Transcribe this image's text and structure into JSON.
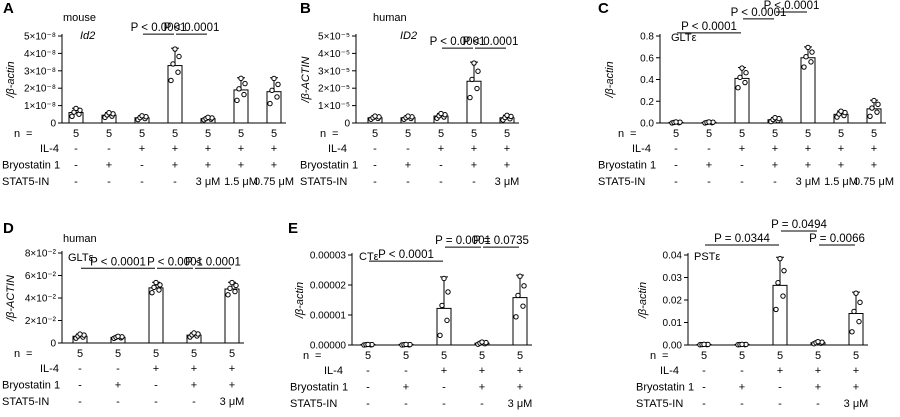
{
  "chart_data": [
    {
      "type": "bar",
      "letter": "A",
      "species": "mouse",
      "gene": "Id2",
      "gene_italic": true,
      "ylabel": "/β-actin",
      "ylim": [
        0,
        5e-08
      ],
      "yticks": [
        "0",
        "1×10⁻⁸",
        "2×10⁻⁸",
        "3×10⁻⁸",
        "4×10⁻⁸",
        "5×10⁻⁸"
      ],
      "values": [
        6e-09,
        4.5e-09,
        3e-09,
        3.3e-08,
        2.5e-09,
        1.9e-08,
        1.8e-08
      ],
      "errors": [
        2.5e-09,
        1.5e-09,
        1.2e-09,
        1e-08,
        8e-10,
        7e-09,
        8e-09
      ],
      "n": [
        "5",
        "5",
        "5",
        "5",
        "5",
        "5",
        "5"
      ],
      "rows": [
        {
          "label": "IL-4",
          "cells": [
            "-",
            "-",
            "+",
            "+",
            "+",
            "+",
            "+"
          ]
        },
        {
          "label": "Bryostatin 1",
          "cells": [
            "-",
            "+",
            "-",
            "+",
            "+",
            "+",
            "+"
          ]
        },
        {
          "label": "STAT5-IN",
          "cells": [
            "-",
            "-",
            "-",
            "-",
            "3 μM",
            "1.5 μM",
            "0.75 μM"
          ]
        }
      ],
      "brackets": [
        {
          "from": 2,
          "to": 3,
          "label": "P < 0.0001",
          "level": 0
        },
        {
          "from": 3,
          "to": 4,
          "label": "P < 0.0001",
          "level": 0
        }
      ]
    },
    {
      "type": "bar",
      "letter": "B",
      "species": "human",
      "gene": "ID2",
      "gene_italic": true,
      "ylabel": "/β-ACTIN",
      "ylim": [
        0,
        5e-05
      ],
      "yticks": [
        "0",
        "1×10⁻⁵",
        "2×10⁻⁵",
        "3×10⁻⁵",
        "4×10⁻⁵",
        "5×10⁻⁵"
      ],
      "values": [
        3e-06,
        3e-06,
        4e-06,
        2.4e-05,
        3e-06
      ],
      "errors": [
        1e-06,
        1e-06,
        1.5e-06,
        1.1e-05,
        1.5e-06
      ],
      "n": [
        "5",
        "5",
        "5",
        "5",
        "5"
      ],
      "rows": [
        {
          "label": "IL-4",
          "cells": [
            "-",
            "-",
            "+",
            "+",
            "+"
          ]
        },
        {
          "label": "Bryostatin 1",
          "cells": [
            "-",
            "+",
            "-",
            "+",
            "+"
          ]
        },
        {
          "label": "STAT5-IN",
          "cells": [
            "-",
            "-",
            "-",
            "-",
            "3 μM"
          ]
        }
      ],
      "brackets": [
        {
          "from": 2,
          "to": 3,
          "label": "P < 0.0001",
          "level": 0
        },
        {
          "from": 3,
          "to": 4,
          "label": "P < 0.0001",
          "level": 0
        }
      ]
    },
    {
      "type": "bar",
      "letter": "C",
      "species": "",
      "gene": "GLTε",
      "gene_italic": false,
      "ylabel": "/β-actin",
      "ylim": [
        0,
        0.8
      ],
      "yticks": [
        "0.0",
        "0.2",
        "0.4",
        "0.6",
        "0.8"
      ],
      "values": [
        0.005,
        0.005,
        0.41,
        0.03,
        0.6,
        0.08,
        0.13
      ],
      "errors": [
        0.005,
        0.005,
        0.1,
        0.02,
        0.1,
        0.03,
        0.08
      ],
      "n": [
        "5",
        "5",
        "5",
        "5",
        "5",
        "5",
        "5"
      ],
      "rows": [
        {
          "label": "IL-4",
          "cells": [
            "-",
            "-",
            "+",
            "+",
            "+",
            "+",
            "+"
          ]
        },
        {
          "label": "Bryostatin 1",
          "cells": [
            "-",
            "+",
            "-",
            "+",
            "+",
            "+",
            "+"
          ]
        },
        {
          "label": "STAT5-IN",
          "cells": [
            "-",
            "-",
            "-",
            "-",
            "3 μM",
            "1.5 μM",
            "0.75 μM"
          ]
        }
      ],
      "brackets": [
        {
          "from": 0,
          "to": 2,
          "label": "P < 0.0001",
          "level": 0
        },
        {
          "from": 2,
          "to": 3,
          "label": "P < 0.0001",
          "level": 1
        },
        {
          "from": 3,
          "to": 4,
          "label": "P < 0.0001",
          "level": 2
        }
      ]
    },
    {
      "type": "bar",
      "letter": "D",
      "species": "human",
      "gene": "GLTε",
      "gene_italic": false,
      "ylabel": "/β-ACTIN",
      "ylim": [
        0,
        0.08
      ],
      "yticks": [
        "0",
        "2×10⁻²",
        "4×10⁻²",
        "6×10⁻²",
        "8×10⁻²"
      ],
      "values": [
        0.006,
        0.005,
        0.049,
        0.007,
        0.048
      ],
      "errors": [
        0.002,
        0.001,
        0.005,
        0.002,
        0.006
      ],
      "n": [
        "5",
        "5",
        "5",
        "5",
        "5"
      ],
      "rows": [
        {
          "label": "IL-4",
          "cells": [
            "-",
            "-",
            "+",
            "+",
            "+"
          ]
        },
        {
          "label": "Bryostatin 1",
          "cells": [
            "-",
            "+",
            "-",
            "+",
            "+"
          ]
        },
        {
          "label": "STAT5-IN",
          "cells": [
            "-",
            "-",
            "-",
            "-",
            "3 μM"
          ]
        }
      ],
      "brackets": [
        {
          "from": 0,
          "to": 2,
          "label": "P < 0.0001",
          "level": 0
        },
        {
          "from": 2,
          "to": 3,
          "label": "P < 0.0001",
          "level": 0
        },
        {
          "from": 3,
          "to": 4,
          "label": "P < 0.0001",
          "level": 0
        }
      ]
    },
    {
      "type": "bar",
      "letter": "E",
      "species": "",
      "gene": "CTε",
      "gene_italic": false,
      "ylabel": "/β-actin",
      "ylim": [
        0,
        3e-05
      ],
      "yticks": [
        "0.00000",
        "0.00001",
        "0.00002",
        "0.00003"
      ],
      "values": [
        1e-07,
        1e-07,
        1.22e-05,
        6e-07,
        1.58e-05
      ],
      "errors": [
        1e-07,
        1e-07,
        1.05e-05,
        4e-07,
        7.5e-06
      ],
      "n": [
        "5",
        "5",
        "5",
        "5",
        "5"
      ],
      "rows": [
        {
          "label": "IL-4",
          "cells": [
            "-",
            "-",
            "+",
            "+",
            "+"
          ]
        },
        {
          "label": "Bryostatin 1",
          "cells": [
            "-",
            "+",
            "-",
            "+",
            "+"
          ]
        },
        {
          "label": "STAT5-IN",
          "cells": [
            "-",
            "-",
            "-",
            "-",
            "3 μM"
          ]
        }
      ],
      "brackets": [
        {
          "from": 0,
          "to": 2,
          "label": "P < 0.0001",
          "level": 0
        },
        {
          "from": 2,
          "to": 3,
          "label": "P = 0.0001",
          "level": 1
        },
        {
          "from": 3,
          "to": 4,
          "label": "P = 0.0735",
          "level": 1
        }
      ]
    },
    {
      "type": "bar",
      "letter": "",
      "species": "",
      "gene": "PSTε",
      "gene_italic": false,
      "ylabel": "/β-actin",
      "ylim": [
        0,
        0.04
      ],
      "yticks": [
        "0.00",
        "0.01",
        "0.02",
        "0.03",
        "0.04"
      ],
      "values": [
        0.0002,
        0.0002,
        0.0265,
        0.001,
        0.014
      ],
      "errors": [
        0.0001,
        0.0001,
        0.0125,
        0.0005,
        0.0095
      ],
      "n": [
        "5",
        "5",
        "5",
        "5",
        "5"
      ],
      "rows": [
        {
          "label": "IL-4",
          "cells": [
            "-",
            "-",
            "+",
            "+",
            "+"
          ]
        },
        {
          "label": "Bryostatin 1",
          "cells": [
            "-",
            "+",
            "-",
            "+",
            "+"
          ]
        },
        {
          "label": "STAT5-IN",
          "cells": [
            "-",
            "-",
            "-",
            "-",
            "3 μM"
          ]
        }
      ],
      "brackets": [
        {
          "from": 0,
          "to": 2,
          "label": "P = 0.0344",
          "level": 0
        },
        {
          "from": 2,
          "to": 3,
          "label": "P = 0.0494",
          "level": 1
        },
        {
          "from": 3,
          "to": 4,
          "label": "P = 0.0066",
          "level": 0
        }
      ]
    }
  ],
  "common": {
    "n_label": "n",
    "equals": "="
  }
}
